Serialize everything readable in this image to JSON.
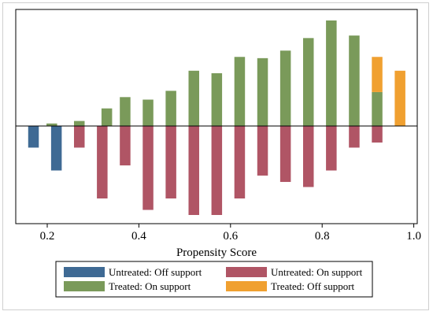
{
  "chart_data": {
    "type": "bar",
    "title": "",
    "xlabel": "Propensity Score",
    "ylabel": "",
    "xlim": [
      0.14,
      1.0
    ],
    "xticks": [
      0.2,
      0.4,
      0.6,
      0.8,
      1.0
    ],
    "xtick_labels": [
      "0.2",
      "0.4",
      "0.6",
      "0.8",
      "1.0"
    ],
    "grid": false,
    "legend_placement": "bottom",
    "bin_width": 0.04,
    "bins_above": [
      {
        "x": 0.21,
        "value": 0.02,
        "group": "treated_on"
      },
      {
        "x": 0.27,
        "value": 0.04,
        "group": "treated_on"
      },
      {
        "x": 0.33,
        "value": 0.14,
        "group": "treated_on"
      },
      {
        "x": 0.37,
        "value": 0.23,
        "group": "treated_on"
      },
      {
        "x": 0.42,
        "value": 0.21,
        "group": "treated_on"
      },
      {
        "x": 0.47,
        "value": 0.28,
        "group": "treated_on"
      },
      {
        "x": 0.52,
        "value": 0.44,
        "group": "treated_on"
      },
      {
        "x": 0.57,
        "value": 0.42,
        "group": "treated_on"
      },
      {
        "x": 0.62,
        "value": 0.55,
        "group": "treated_on"
      },
      {
        "x": 0.67,
        "value": 0.54,
        "group": "treated_on"
      },
      {
        "x": 0.72,
        "value": 0.6,
        "group": "treated_on"
      },
      {
        "x": 0.77,
        "value": 0.7,
        "group": "treated_on"
      },
      {
        "x": 0.82,
        "value": 0.84,
        "group": "treated_on"
      },
      {
        "x": 0.87,
        "value": 0.72,
        "group": "treated_on"
      },
      {
        "x": 0.92,
        "value": 0.27,
        "group": "treated_on"
      },
      {
        "x": 0.92,
        "value": 0.28,
        "base": 0.27,
        "group": "treated_off"
      },
      {
        "x": 0.97,
        "value": 0.44,
        "group": "treated_off"
      }
    ],
    "bins_below": [
      {
        "x": 0.17,
        "value": 0.17,
        "group": "untreated_off"
      },
      {
        "x": 0.22,
        "value": 0.35,
        "group": "untreated_off"
      },
      {
        "x": 0.27,
        "value": 0.17,
        "group": "untreated_on"
      },
      {
        "x": 0.32,
        "value": 0.57,
        "group": "untreated_on"
      },
      {
        "x": 0.37,
        "value": 0.31,
        "group": "untreated_on"
      },
      {
        "x": 0.42,
        "value": 0.66,
        "group": "untreated_on"
      },
      {
        "x": 0.47,
        "value": 0.57,
        "group": "untreated_on"
      },
      {
        "x": 0.52,
        "value": 0.7,
        "group": "untreated_on"
      },
      {
        "x": 0.57,
        "value": 0.7,
        "group": "untreated_on"
      },
      {
        "x": 0.62,
        "value": 0.57,
        "group": "untreated_on"
      },
      {
        "x": 0.67,
        "value": 0.39,
        "group": "untreated_on"
      },
      {
        "x": 0.72,
        "value": 0.44,
        "group": "untreated_on"
      },
      {
        "x": 0.77,
        "value": 0.48,
        "group": "untreated_on"
      },
      {
        "x": 0.82,
        "value": 0.35,
        "group": "untreated_on"
      },
      {
        "x": 0.87,
        "value": 0.17,
        "group": "untreated_on"
      },
      {
        "x": 0.92,
        "value": 0.13,
        "group": "untreated_on"
      }
    ],
    "ylim": [
      -0.75,
      0.88
    ],
    "legend": [
      {
        "key": "untreated_off",
        "label": "Untreated: Off support",
        "color": "#3f6a94"
      },
      {
        "key": "untreated_on",
        "label": "Untreated: On support",
        "color": "#b05565"
      },
      {
        "key": "treated_on",
        "label": "Treated: On support",
        "color": "#7a9a5a"
      },
      {
        "key": "treated_off",
        "label": "Treated: Off support",
        "color": "#f0a030"
      }
    ]
  }
}
